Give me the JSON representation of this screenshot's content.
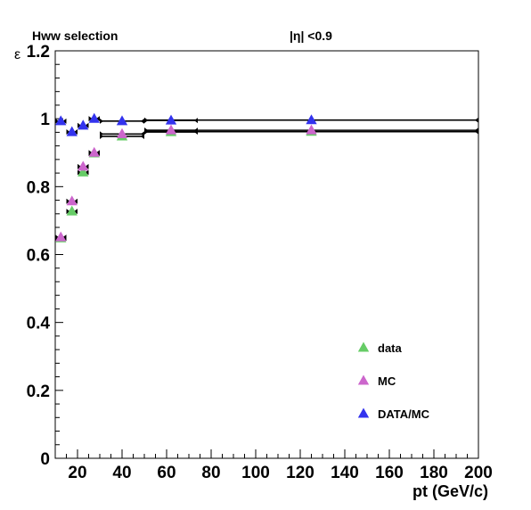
{
  "chart_data": {
    "type": "scatter",
    "title_left": "Hww selection",
    "title_right": "|η| <0.9",
    "xlabel": "pt (GeV/c)",
    "ylabel": "ε",
    "xlim": [
      10,
      200
    ],
    "ylim": [
      0,
      1.2
    ],
    "xticks": [
      20,
      40,
      60,
      80,
      100,
      120,
      140,
      160,
      180,
      200
    ],
    "yticks": [
      0,
      0.2,
      0.4,
      0.6,
      0.8,
      1,
      1.2
    ],
    "ytick_labels": [
      "0",
      "0.2",
      "0.4",
      "0.6",
      "0.8",
      "1",
      "1.2"
    ],
    "grid": false,
    "legend_position": "lower-right",
    "series": [
      {
        "name": "data",
        "color": "#66cc66",
        "marker": "triangle-up",
        "points": [
          {
            "x": 12.5,
            "xerr": 2.5,
            "y": 0.648
          },
          {
            "x": 17.5,
            "xerr": 2.5,
            "y": 0.727
          },
          {
            "x": 22.5,
            "xerr": 2.5,
            "y": 0.842
          },
          {
            "x": 27.5,
            "xerr": 2.5,
            "y": 0.898
          },
          {
            "x": 40,
            "xerr": 10,
            "y": 0.948
          },
          {
            "x": 62,
            "xerr": 12,
            "y": 0.961
          },
          {
            "x": 125,
            "xerr": 75,
            "y": 0.962
          }
        ]
      },
      {
        "name": "MC",
        "color": "#cc66cc",
        "marker": "triangle-up",
        "points": [
          {
            "x": 12.5,
            "xerr": 2.5,
            "y": 0.651
          },
          {
            "x": 17.5,
            "xerr": 2.5,
            "y": 0.757
          },
          {
            "x": 22.5,
            "xerr": 2.5,
            "y": 0.859
          },
          {
            "x": 27.5,
            "xerr": 2.5,
            "y": 0.9
          },
          {
            "x": 40,
            "xerr": 10,
            "y": 0.955
          },
          {
            "x": 62,
            "xerr": 12,
            "y": 0.966
          },
          {
            "x": 125,
            "xerr": 75,
            "y": 0.966
          }
        ]
      },
      {
        "name": "DATA/MC",
        "color": "#3333ee",
        "marker": "triangle-up",
        "points": [
          {
            "x": 12.5,
            "xerr": 2.5,
            "y": 0.993
          },
          {
            "x": 17.5,
            "xerr": 2.5,
            "y": 0.961
          },
          {
            "x": 22.5,
            "xerr": 2.5,
            "y": 0.98
          },
          {
            "x": 27.5,
            "xerr": 2.5,
            "y": 1.0
          },
          {
            "x": 40,
            "xerr": 10,
            "y": 0.993
          },
          {
            "x": 62,
            "xerr": 12,
            "y": 0.995
          },
          {
            "x": 125,
            "xerr": 75,
            "y": 0.996
          }
        ]
      }
    ]
  }
}
